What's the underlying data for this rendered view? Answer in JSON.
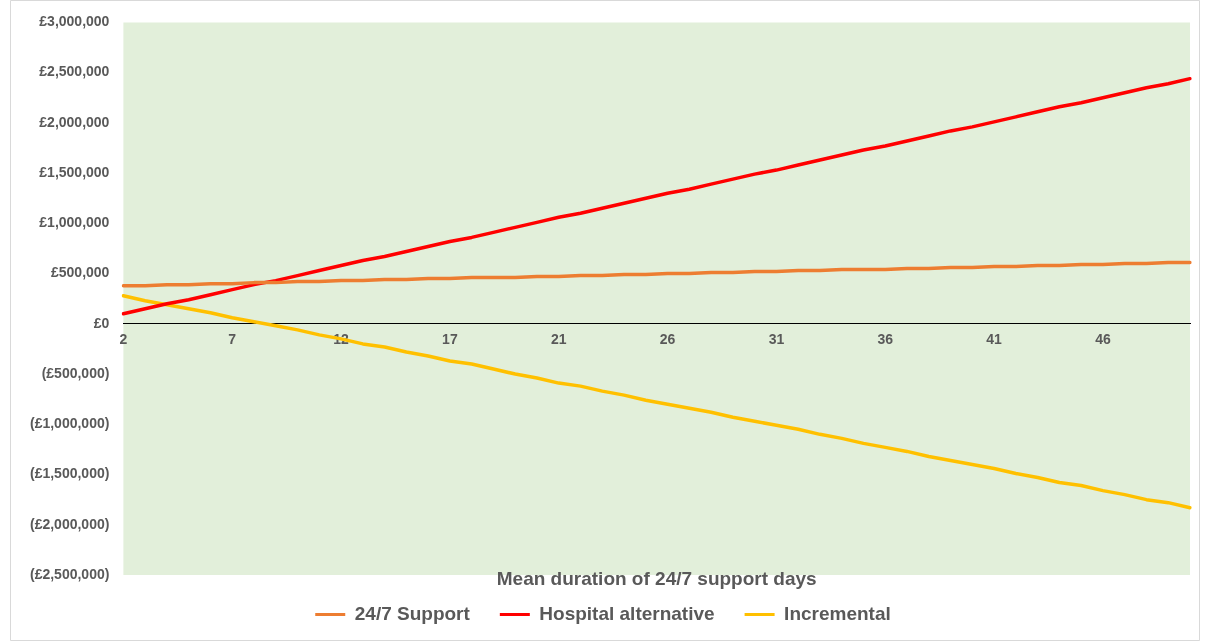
{
  "chart_data": {
    "type": "line",
    "xlabel": "Mean duration of 24/7 support days",
    "categories": [
      "2",
      null,
      null,
      null,
      null,
      "7",
      null,
      null,
      null,
      null,
      "12",
      null,
      null,
      null,
      null,
      "17",
      null,
      null,
      null,
      null,
      "21",
      null,
      null,
      null,
      null,
      "26",
      null,
      null,
      null,
      null,
      "31",
      null,
      null,
      null,
      null,
      "36",
      null,
      null,
      null,
      null,
      "41",
      null,
      null,
      null,
      null,
      "46",
      null,
      null,
      null,
      null
    ],
    "series": [
      {
        "name": "24/7 Support",
        "color": "#ed7d31",
        "values": [
          380000,
          380000,
          390000,
          390000,
          400000,
          400000,
          410000,
          410000,
          420000,
          420000,
          430000,
          430000,
          440000,
          440000,
          450000,
          450000,
          460000,
          460000,
          460000,
          470000,
          470000,
          480000,
          480000,
          490000,
          490000,
          500000,
          500000,
          510000,
          510000,
          520000,
          520000,
          530000,
          530000,
          540000,
          540000,
          540000,
          550000,
          550000,
          560000,
          560000,
          570000,
          570000,
          580000,
          580000,
          590000,
          590000,
          600000,
          600000,
          610000,
          610000
        ]
      },
      {
        "name": "Hospital alternative",
        "color": "#ff0000",
        "values": [
          100000,
          150000,
          200000,
          240000,
          290000,
          340000,
          390000,
          430000,
          480000,
          530000,
          580000,
          630000,
          670000,
          720000,
          770000,
          820000,
          860000,
          910000,
          960000,
          1010000,
          1060000,
          1100000,
          1150000,
          1200000,
          1250000,
          1300000,
          1340000,
          1390000,
          1440000,
          1490000,
          1530000,
          1580000,
          1630000,
          1680000,
          1730000,
          1770000,
          1820000,
          1870000,
          1920000,
          1960000,
          2010000,
          2060000,
          2110000,
          2160000,
          2200000,
          2250000,
          2300000,
          2350000,
          2390000,
          2440000
        ]
      },
      {
        "name": "Incremental",
        "color": "#ffc000",
        "values": [
          280000,
          230000,
          190000,
          150000,
          110000,
          60000,
          20000,
          -20000,
          -60000,
          -110000,
          -150000,
          -200000,
          -230000,
          -280000,
          -320000,
          -370000,
          -400000,
          -450000,
          -500000,
          -540000,
          -590000,
          -620000,
          -670000,
          -710000,
          -760000,
          -800000,
          -840000,
          -880000,
          -930000,
          -970000,
          -1010000,
          -1050000,
          -1100000,
          -1140000,
          -1190000,
          -1230000,
          -1270000,
          -1320000,
          -1360000,
          -1400000,
          -1440000,
          -1490000,
          -1530000,
          -1580000,
          -1610000,
          -1660000,
          -1700000,
          -1750000,
          -1780000,
          -1830000
        ]
      }
    ],
    "ylim": [
      -2500000,
      3000000
    ],
    "yticks": [
      {
        "value": -2500000,
        "label": "(£2,500,000)"
      },
      {
        "value": -2000000,
        "label": "(£2,000,000)"
      },
      {
        "value": -1500000,
        "label": "(£1,500,000)"
      },
      {
        "value": -1000000,
        "label": "(£1,000,000)"
      },
      {
        "value": -500000,
        "label": "(£500,000)"
      },
      {
        "value": 0,
        "label": "£0"
      },
      {
        "value": 500000,
        "label": "£500,000"
      },
      {
        "value": 1000000,
        "label": "£1,000,000"
      },
      {
        "value": 1500000,
        "label": "£1,500,000"
      },
      {
        "value": 2000000,
        "label": "£2,000,000"
      },
      {
        "value": 2500000,
        "label": "£2,500,000"
      },
      {
        "value": 3000000,
        "label": "£3,000,000"
      }
    ],
    "grid": false,
    "legend": "bottom",
    "marker": "none",
    "line_style": "solid"
  }
}
